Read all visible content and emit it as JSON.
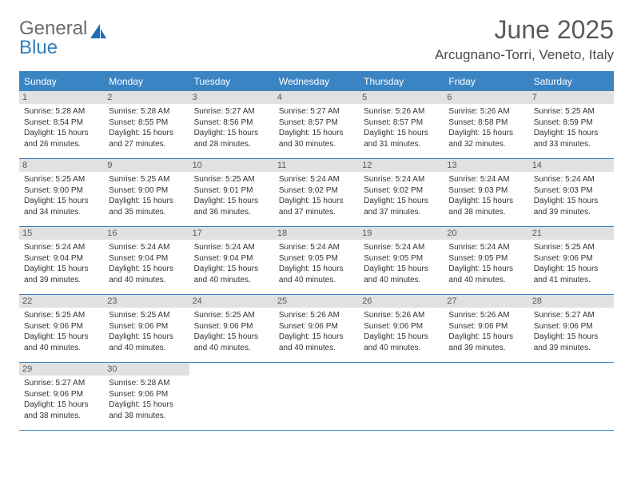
{
  "logo": {
    "text_general": "General",
    "text_blue": "Blue"
  },
  "title": "June 2025",
  "location": "Arcugnano-Torri, Veneto, Italy",
  "colors": {
    "header_bg": "#3b84c4",
    "daynum_bg": "#e1e1e1",
    "rule": "#3b84c4"
  },
  "weekdays": [
    "Sunday",
    "Monday",
    "Tuesday",
    "Wednesday",
    "Thursday",
    "Friday",
    "Saturday"
  ],
  "weeks": [
    [
      {
        "n": "1",
        "sr": "5:28 AM",
        "ss": "8:54 PM",
        "dl": "15 hours and 26 minutes."
      },
      {
        "n": "2",
        "sr": "5:28 AM",
        "ss": "8:55 PM",
        "dl": "15 hours and 27 minutes."
      },
      {
        "n": "3",
        "sr": "5:27 AM",
        "ss": "8:56 PM",
        "dl": "15 hours and 28 minutes."
      },
      {
        "n": "4",
        "sr": "5:27 AM",
        "ss": "8:57 PM",
        "dl": "15 hours and 30 minutes."
      },
      {
        "n": "5",
        "sr": "5:26 AM",
        "ss": "8:57 PM",
        "dl": "15 hours and 31 minutes."
      },
      {
        "n": "6",
        "sr": "5:26 AM",
        "ss": "8:58 PM",
        "dl": "15 hours and 32 minutes."
      },
      {
        "n": "7",
        "sr": "5:25 AM",
        "ss": "8:59 PM",
        "dl": "15 hours and 33 minutes."
      }
    ],
    [
      {
        "n": "8",
        "sr": "5:25 AM",
        "ss": "9:00 PM",
        "dl": "15 hours and 34 minutes."
      },
      {
        "n": "9",
        "sr": "5:25 AM",
        "ss": "9:00 PM",
        "dl": "15 hours and 35 minutes."
      },
      {
        "n": "10",
        "sr": "5:25 AM",
        "ss": "9:01 PM",
        "dl": "15 hours and 36 minutes."
      },
      {
        "n": "11",
        "sr": "5:24 AM",
        "ss": "9:02 PM",
        "dl": "15 hours and 37 minutes."
      },
      {
        "n": "12",
        "sr": "5:24 AM",
        "ss": "9:02 PM",
        "dl": "15 hours and 37 minutes."
      },
      {
        "n": "13",
        "sr": "5:24 AM",
        "ss": "9:03 PM",
        "dl": "15 hours and 38 minutes."
      },
      {
        "n": "14",
        "sr": "5:24 AM",
        "ss": "9:03 PM",
        "dl": "15 hours and 39 minutes."
      }
    ],
    [
      {
        "n": "15",
        "sr": "5:24 AM",
        "ss": "9:04 PM",
        "dl": "15 hours and 39 minutes."
      },
      {
        "n": "16",
        "sr": "5:24 AM",
        "ss": "9:04 PM",
        "dl": "15 hours and 40 minutes."
      },
      {
        "n": "17",
        "sr": "5:24 AM",
        "ss": "9:04 PM",
        "dl": "15 hours and 40 minutes."
      },
      {
        "n": "18",
        "sr": "5:24 AM",
        "ss": "9:05 PM",
        "dl": "15 hours and 40 minutes."
      },
      {
        "n": "19",
        "sr": "5:24 AM",
        "ss": "9:05 PM",
        "dl": "15 hours and 40 minutes."
      },
      {
        "n": "20",
        "sr": "5:24 AM",
        "ss": "9:05 PM",
        "dl": "15 hours and 40 minutes."
      },
      {
        "n": "21",
        "sr": "5:25 AM",
        "ss": "9:06 PM",
        "dl": "15 hours and 41 minutes."
      }
    ],
    [
      {
        "n": "22",
        "sr": "5:25 AM",
        "ss": "9:06 PM",
        "dl": "15 hours and 40 minutes."
      },
      {
        "n": "23",
        "sr": "5:25 AM",
        "ss": "9:06 PM",
        "dl": "15 hours and 40 minutes."
      },
      {
        "n": "24",
        "sr": "5:25 AM",
        "ss": "9:06 PM",
        "dl": "15 hours and 40 minutes."
      },
      {
        "n": "25",
        "sr": "5:26 AM",
        "ss": "9:06 PM",
        "dl": "15 hours and 40 minutes."
      },
      {
        "n": "26",
        "sr": "5:26 AM",
        "ss": "9:06 PM",
        "dl": "15 hours and 40 minutes."
      },
      {
        "n": "27",
        "sr": "5:26 AM",
        "ss": "9:06 PM",
        "dl": "15 hours and 39 minutes."
      },
      {
        "n": "28",
        "sr": "5:27 AM",
        "ss": "9:06 PM",
        "dl": "15 hours and 39 minutes."
      }
    ],
    [
      {
        "n": "29",
        "sr": "5:27 AM",
        "ss": "9:06 PM",
        "dl": "15 hours and 38 minutes."
      },
      {
        "n": "30",
        "sr": "5:28 AM",
        "ss": "9:06 PM",
        "dl": "15 hours and 38 minutes."
      },
      null,
      null,
      null,
      null,
      null
    ]
  ],
  "labels": {
    "sunrise": "Sunrise: ",
    "sunset": "Sunset: ",
    "daylight": "Daylight: "
  }
}
